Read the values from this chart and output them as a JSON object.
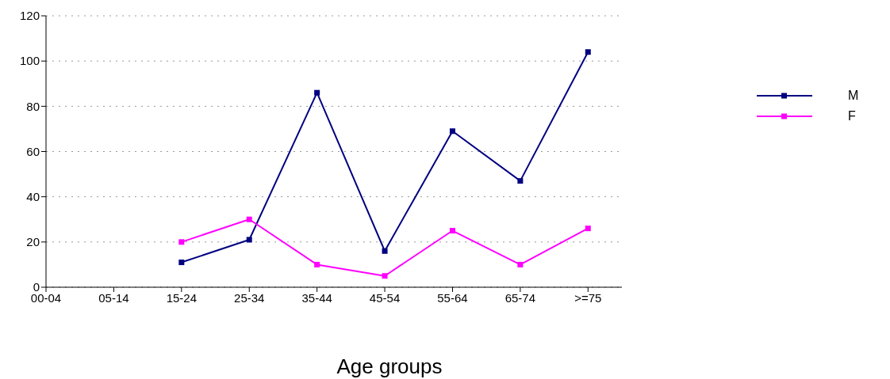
{
  "chart_data": {
    "type": "line",
    "xlabel": "Age groups",
    "categories": [
      "00-04",
      "05-14",
      "15-24",
      "25-34",
      "35-44",
      "45-54",
      "55-64",
      "65-74",
      ">=75"
    ],
    "series": [
      {
        "name": "M",
        "color": "#000080",
        "values": [
          null,
          null,
          11,
          21,
          86,
          16,
          69,
          47,
          104
        ]
      },
      {
        "name": "F",
        "color": "#ff00ff",
        "values": [
          null,
          null,
          20,
          30,
          10,
          5,
          25,
          10,
          26
        ]
      }
    ],
    "ylim": [
      0,
      120
    ],
    "yticks": [
      0,
      20,
      40,
      60,
      80,
      100,
      120
    ],
    "grid": "y",
    "legend": "right",
    "marker": "square",
    "line_style": "solid"
  }
}
